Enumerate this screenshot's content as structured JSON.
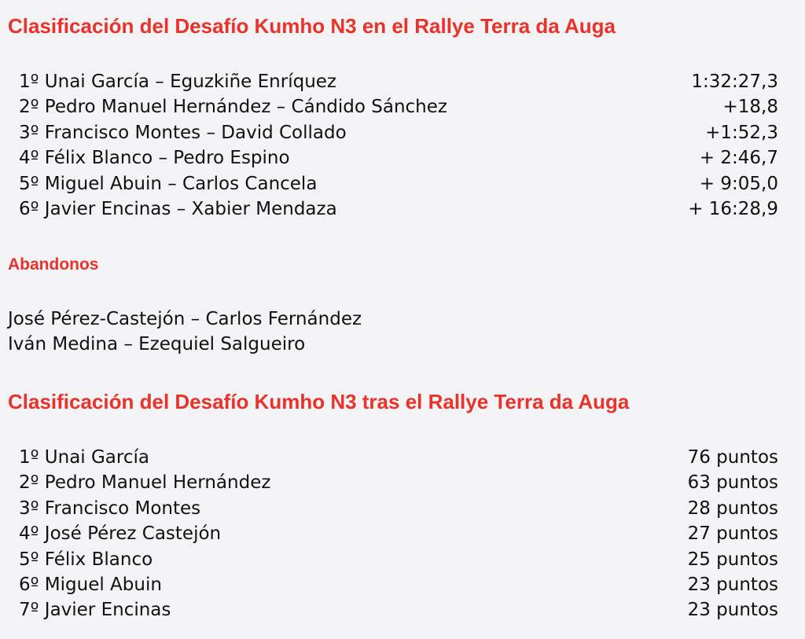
{
  "colors": {
    "accent": "#e8322a",
    "background": "#f3f3f5",
    "text": "#111111"
  },
  "section1": {
    "title": "Clasificación del Desafío Kumho N3 en el Rallye Terra da Auga",
    "rows": [
      {
        "name": "1º Unai García – Eguzkiñe Enríquez",
        "value": "1:32:27,3"
      },
      {
        "name": "2º Pedro Manuel Hernández – Cándido Sánchez",
        "value": "+18,8"
      },
      {
        "name": "3º Francisco Montes – David Collado",
        "value": "+1:52,3"
      },
      {
        "name": "4º Félix Blanco – Pedro Espino",
        "value": "+ 2:46,7"
      },
      {
        "name": "5º Miguel Abuin – Carlos Cancela",
        "value": "+ 9:05,0"
      },
      {
        "name": "6º Javier Encinas – Xabier Mendaza",
        "value": "+ 16:28,9"
      }
    ]
  },
  "abandonos": {
    "title": "Abandonos",
    "rows": [
      "José Pérez-Castejón – Carlos Fernández",
      "Iván Medina – Ezequiel Salgueiro"
    ]
  },
  "section2": {
    "title": "Clasificación del Desafío Kumho N3 tras el Rallye Terra da Auga",
    "rows": [
      {
        "name": "1º Unai García",
        "value": "76 puntos"
      },
      {
        "name": "2º Pedro Manuel Hernández",
        "value": "63 puntos"
      },
      {
        "name": "3º Francisco Montes",
        "value": "28 puntos"
      },
      {
        "name": "4º José Pérez Castejón",
        "value": "27 puntos"
      },
      {
        "name": "5º Félix Blanco",
        "value": "25 puntos"
      },
      {
        "name": "6º Miguel Abuin",
        "value": "23 puntos"
      },
      {
        "name": "7º Javier Encinas",
        "value": "23 puntos"
      }
    ]
  }
}
